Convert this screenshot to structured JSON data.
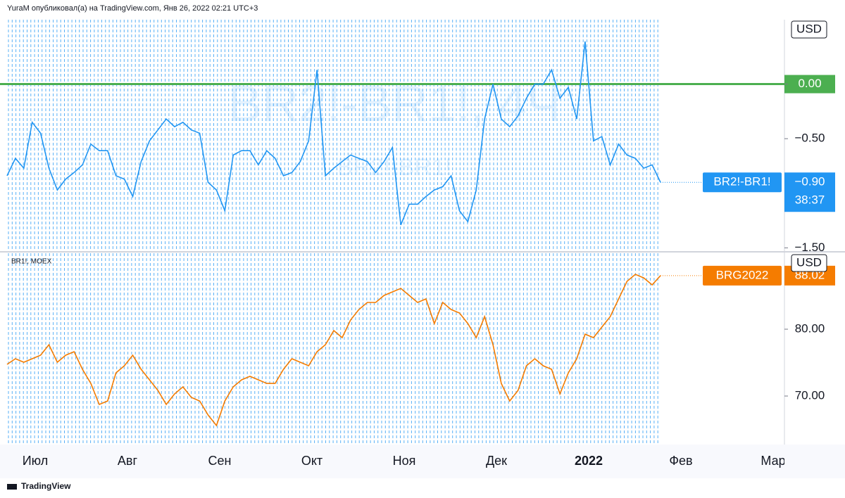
{
  "header": "YuraM опубликовал(а) на TradingView.com, Янв 26, 2022 02:21 UTC+3",
  "footer": "TradingView",
  "time_axis": {
    "labels": [
      "Июл",
      "Авг",
      "Сен",
      "Окт",
      "Ноя",
      "Дек",
      "2022",
      "Фев",
      "Мар"
    ]
  },
  "chart_data": [
    {
      "type": "line",
      "watermark": "BR2!-BR1!, 4Ч",
      "watermark_sub": "BR2!-BR1!",
      "currency": "USD",
      "ylim": [
        -1.53,
        0.59
      ],
      "yticks": [
        {
          "value": -1.5,
          "label": "−1.50"
        },
        {
          "value": -0.5,
          "label": "−0.50"
        },
        {
          "value": 0,
          "label": "0.00"
        }
      ],
      "hline": {
        "value": 0,
        "color": "#4caf50"
      },
      "series": [
        {
          "name": "BR2!-BR1!",
          "color": "#2196f3",
          "countdown": "38:37",
          "values": [
            -0.84,
            -0.68,
            -0.77,
            -0.35,
            -0.45,
            -0.77,
            -0.97,
            -0.87,
            -0.81,
            -0.74,
            -0.55,
            -0.61,
            -0.61,
            -0.84,
            -0.87,
            -1.03,
            -0.71,
            -0.52,
            -0.42,
            -0.32,
            -0.39,
            -0.35,
            -0.42,
            -0.45,
            -0.9,
            -0.97,
            -1.16,
            -0.65,
            -0.61,
            -0.61,
            -0.74,
            -0.61,
            -0.68,
            -0.84,
            -0.81,
            -0.71,
            -0.52,
            0.13,
            -0.84,
            -0.77,
            -0.71,
            -0.65,
            -0.68,
            -0.71,
            -0.81,
            -0.71,
            -0.58,
            -1.29,
            -1.1,
            -1.1,
            -1.03,
            -0.97,
            -0.94,
            -0.84,
            -1.16,
            -1.26,
            -0.97,
            -0.32,
            0.0,
            -0.32,
            -0.39,
            -0.29,
            -0.13,
            0.0,
            0.0,
            0.13,
            -0.13,
            -0.03,
            -0.32,
            0.39,
            -0.52,
            -0.48,
            -0.74,
            -0.55,
            -0.65,
            -0.68,
            -0.77,
            -0.74,
            -0.9
          ],
          "value_labels": [
            null,
            null,
            null,
            null,
            null,
            null,
            null,
            null,
            null,
            null,
            null,
            null,
            null,
            null,
            null,
            null,
            null,
            null,
            null,
            null,
            null,
            null,
            null,
            null,
            null,
            null,
            null,
            null,
            null,
            null,
            null,
            null,
            null,
            null,
            null,
            null,
            null,
            null,
            null,
            null,
            null,
            null,
            null,
            null,
            null,
            null,
            null,
            null,
            null,
            null,
            null,
            null,
            null,
            null,
            null,
            null,
            null,
            null,
            null,
            null,
            null,
            null,
            null,
            null,
            null,
            null,
            null,
            null,
            null,
            null,
            null,
            null,
            null,
            null,
            null,
            null,
            null,
            null,
            "−0.90"
          ]
        }
      ]
    },
    {
      "type": "line",
      "label": "BR1!, MOEX",
      "currency": "USD",
      "ylim": [
        62.74,
        91.37
      ],
      "yticks": [
        {
          "value": 70,
          "label": "70.00"
        },
        {
          "value": 80,
          "label": "80.00"
        }
      ],
      "series": [
        {
          "name": "BRG2022",
          "color": "#f57c00",
          "values": [
            74.74,
            75.58,
            75.05,
            75.58,
            76.11,
            77.68,
            75.05,
            76.11,
            76.63,
            74.0,
            71.89,
            68.74,
            69.26,
            73.47,
            74.53,
            76.11,
            74.0,
            72.42,
            70.84,
            68.74,
            70.32,
            71.37,
            69.79,
            69.26,
            67.16,
            65.58,
            69.26,
            71.37,
            72.42,
            72.95,
            72.42,
            71.89,
            71.89,
            74.0,
            75.58,
            75.05,
            74.53,
            76.63,
            77.68,
            79.79,
            78.74,
            81.37,
            82.95,
            84.0,
            84.0,
            85.05,
            85.58,
            86.11,
            85.05,
            84.0,
            84.53,
            80.84,
            84.0,
            82.95,
            82.42,
            80.84,
            78.74,
            81.89,
            77.68,
            71.89,
            69.26,
            70.84,
            74.53,
            75.58,
            74.53,
            74.0,
            70.32,
            73.47,
            75.58,
            79.26,
            78.74,
            80.32,
            81.89,
            84.53,
            87.16,
            88.21,
            87.68,
            86.63,
            88.02
          ],
          "value_labels": [
            null,
            null,
            null,
            null,
            null,
            null,
            null,
            null,
            null,
            null,
            null,
            null,
            null,
            null,
            null,
            null,
            null,
            null,
            null,
            null,
            null,
            null,
            null,
            null,
            null,
            null,
            null,
            null,
            null,
            null,
            null,
            null,
            null,
            null,
            null,
            null,
            null,
            null,
            null,
            null,
            null,
            null,
            null,
            null,
            null,
            null,
            null,
            null,
            null,
            null,
            null,
            null,
            null,
            null,
            null,
            null,
            null,
            null,
            null,
            null,
            null,
            null,
            null,
            null,
            null,
            null,
            null,
            null,
            null,
            null,
            null,
            null,
            null,
            null,
            null,
            null,
            null,
            null,
            "88.02"
          ]
        }
      ]
    }
  ]
}
